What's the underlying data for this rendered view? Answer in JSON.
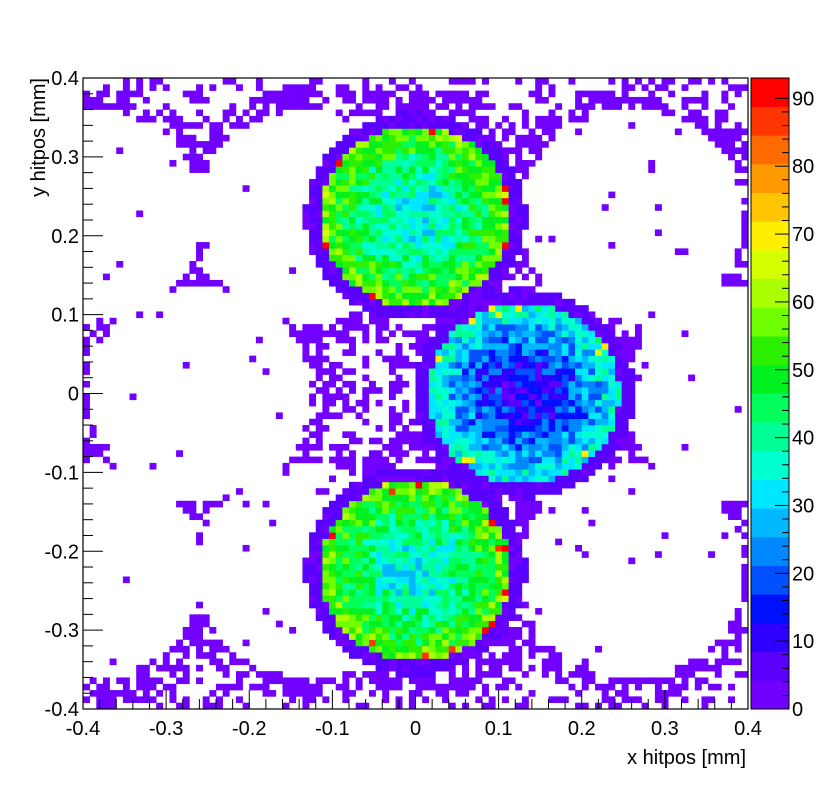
{
  "chart_data": {
    "type": "heatmap",
    "title": "",
    "xlabel": "x hitpos [mm]",
    "ylabel": "y hitpos [mm]",
    "xlim": [
      -0.4,
      0.4
    ],
    "ylim": [
      -0.4,
      0.4
    ],
    "bins": 100,
    "grid": false,
    "x_ticks": [
      "-0.4",
      "-0.3",
      "-0.2",
      "-0.1",
      "0",
      "0.1",
      "0.2",
      "0.3",
      "0.4"
    ],
    "y_ticks": [
      "-0.4",
      "-0.3",
      "-0.2",
      "-0.1",
      "0",
      "0.1",
      "0.2",
      "0.3",
      "0.4"
    ],
    "colorbar": {
      "range": [
        0,
        93
      ],
      "ticks": [
        "0",
        "10",
        "20",
        "30",
        "40",
        "50",
        "60",
        "70",
        "80",
        "90"
      ],
      "colors": [
        "#7200ff",
        "#5a00ff",
        "#2f00ff",
        "#0010ff",
        "#0050ff",
        "#0088ff",
        "#00b8ff",
        "#00e8ff",
        "#00ffd0",
        "#00ff96",
        "#00ff5a",
        "#00f020",
        "#2cf000",
        "#70ff00",
        "#aaff00",
        "#d6ff00",
        "#ffee00",
        "#ffc600",
        "#ff9a00",
        "#ff6a00",
        "#ff3500",
        "#ff0000"
      ]
    },
    "regions": [
      {
        "name": "upper circle",
        "center": [
          0.0,
          0.225
        ],
        "radius": 0.115,
        "edge_value": 58,
        "center_value": 33
      },
      {
        "name": "middle circle",
        "center": [
          0.13,
          0.0
        ],
        "radius": 0.115,
        "edge_value": 38,
        "center_value": 10
      },
      {
        "name": "lower circle",
        "center": [
          0.0,
          -0.225
        ],
        "radius": 0.115,
        "edge_value": 58,
        "center_value": 33
      }
    ],
    "background_pattern": {
      "description": "sparse low-count hexagonal hole-pattern edges",
      "hole_centers": [
        [
          -0.26,
          0.0
        ],
        [
          0.0,
          0.225
        ],
        [
          0.13,
          0.0
        ],
        [
          0.0,
          -0.225
        ],
        [
          0.26,
          0.225
        ],
        [
          0.26,
          -0.225
        ],
        [
          -0.13,
          0.225
        ],
        [
          -0.13,
          -0.225
        ],
        [
          0.39,
          0.0
        ],
        [
          -0.39,
          0.225
        ],
        [
          -0.39,
          -0.225
        ]
      ],
      "hole_radius": 0.135,
      "value": 1
    }
  }
}
